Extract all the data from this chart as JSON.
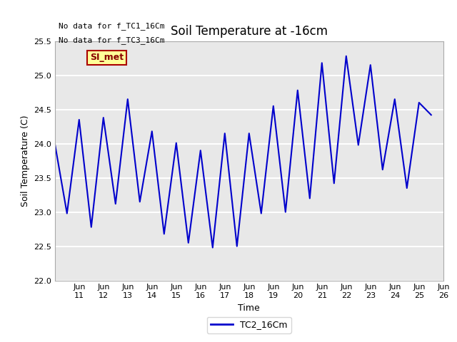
{
  "title": "Soil Temperature at -16cm",
  "xlabel": "Time",
  "ylabel": "Soil Temperature (C)",
  "ylim": [
    22.0,
    25.5
  ],
  "yticks": [
    22.0,
    22.5,
    23.0,
    23.5,
    24.0,
    24.5,
    25.0,
    25.5
  ],
  "line_color": "#0000CC",
  "bg_color": "#E8E8E8",
  "no_data_text1": "No data for f_TC1_16Cm",
  "no_data_text2": "No data for f_TC3_16Cm",
  "si_met_label": "SI_met",
  "legend_label": "TC2_16Cm",
  "date_start": 10,
  "date_end": 26,
  "x_tick_labels": [
    "Jun 11",
    "Jun 12",
    "Jun 13",
    "Jun 14",
    "Jun 15",
    "Jun 16",
    "Jun 17",
    "Jun 18",
    "Jun 19",
    "Jun 20",
    "Jun 21",
    "Jun 22",
    "Jun 23",
    "Jun 24",
    "Jun 25",
    "Jun 26"
  ],
  "data_x": [
    10,
    10.5,
    11.0,
    11.5,
    12.0,
    12.5,
    13.0,
    13.5,
    14.0,
    14.5,
    15.0,
    15.5,
    16.0,
    16.5,
    17.0,
    17.5,
    18.0,
    18.5,
    19.0,
    19.5,
    20.0,
    20.5,
    21.0,
    21.5,
    22.0,
    22.5,
    23.0,
    23.5,
    24.0,
    24.5,
    25.0,
    25.5
  ],
  "data_y": [
    24.0,
    22.98,
    24.35,
    22.78,
    24.38,
    23.12,
    24.65,
    23.15,
    24.18,
    22.68,
    24.01,
    22.55,
    23.9,
    22.48,
    24.15,
    22.5,
    24.15,
    22.98,
    24.55,
    23.0,
    24.78,
    23.2,
    25.18,
    23.42,
    25.28,
    23.98,
    25.15,
    23.62,
    24.65,
    23.35,
    24.6,
    24.42
  ]
}
